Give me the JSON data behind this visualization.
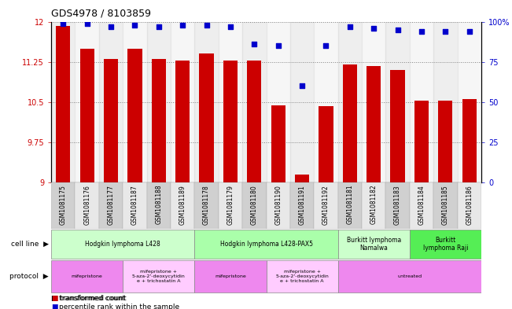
{
  "title": "GDS4978 / 8103859",
  "samples": [
    "GSM1081175",
    "GSM1081176",
    "GSM1081177",
    "GSM1081187",
    "GSM1081188",
    "GSM1081189",
    "GSM1081178",
    "GSM1081179",
    "GSM1081180",
    "GSM1081190",
    "GSM1081191",
    "GSM1081192",
    "GSM1081181",
    "GSM1081182",
    "GSM1081183",
    "GSM1081184",
    "GSM1081185",
    "GSM1081186"
  ],
  "bar_values": [
    11.92,
    11.5,
    11.31,
    11.5,
    11.3,
    11.28,
    11.4,
    11.27,
    11.27,
    10.43,
    9.15,
    10.42,
    11.2,
    11.17,
    11.1,
    10.53,
    10.52,
    10.56
  ],
  "dot_values": [
    99,
    99,
    97,
    98,
    97,
    98,
    98,
    97,
    86,
    85,
    60,
    85,
    97,
    96,
    95,
    94,
    94,
    94
  ],
  "bar_color": "#cc0000",
  "dot_color": "#0000cc",
  "ylim_left": [
    9,
    12
  ],
  "ylim_right": [
    0,
    100
  ],
  "yticks_left": [
    9,
    9.75,
    10.5,
    11.25,
    12
  ],
  "yticks_right": [
    0,
    25,
    50,
    75,
    100
  ],
  "yticklabels_left": [
    "9",
    "9.75",
    "10.5",
    "11.25",
    "12"
  ],
  "yticklabels_right": [
    "0",
    "25",
    "50",
    "75",
    "100%"
  ],
  "cell_line_groups": [
    {
      "label": "Hodgkin lymphoma L428",
      "start": 0,
      "end": 5,
      "color": "#ccffcc"
    },
    {
      "label": "Hodgkin lymphoma L428-PAX5",
      "start": 6,
      "end": 11,
      "color": "#aaffaa"
    },
    {
      "label": "Burkitt lymphoma\nNamalwa",
      "start": 12,
      "end": 14,
      "color": "#ccffcc"
    },
    {
      "label": "Burkitt\nlymphoma Raji",
      "start": 15,
      "end": 17,
      "color": "#55ee55"
    }
  ],
  "protocol_groups": [
    {
      "label": "mifepristone",
      "start": 0,
      "end": 2,
      "color": "#ee88ee"
    },
    {
      "label": "mifepristone +\n5-aza-2'-deoxycytidin\ne + trichostatin A",
      "start": 3,
      "end": 5,
      "color": "#ffccff"
    },
    {
      "label": "mifepristone",
      "start": 6,
      "end": 8,
      "color": "#ee88ee"
    },
    {
      "label": "mifepristone +\n5-aza-2'-deoxycytidin\ne + trichostatin A",
      "start": 9,
      "end": 11,
      "color": "#ffccff"
    },
    {
      "label": "untreated",
      "start": 12,
      "end": 17,
      "color": "#ee88ee"
    }
  ],
  "legend_red": "transformed count",
  "legend_blue": "percentile rank within the sample",
  "cell_line_label": "cell line",
  "protocol_label": "protocol"
}
